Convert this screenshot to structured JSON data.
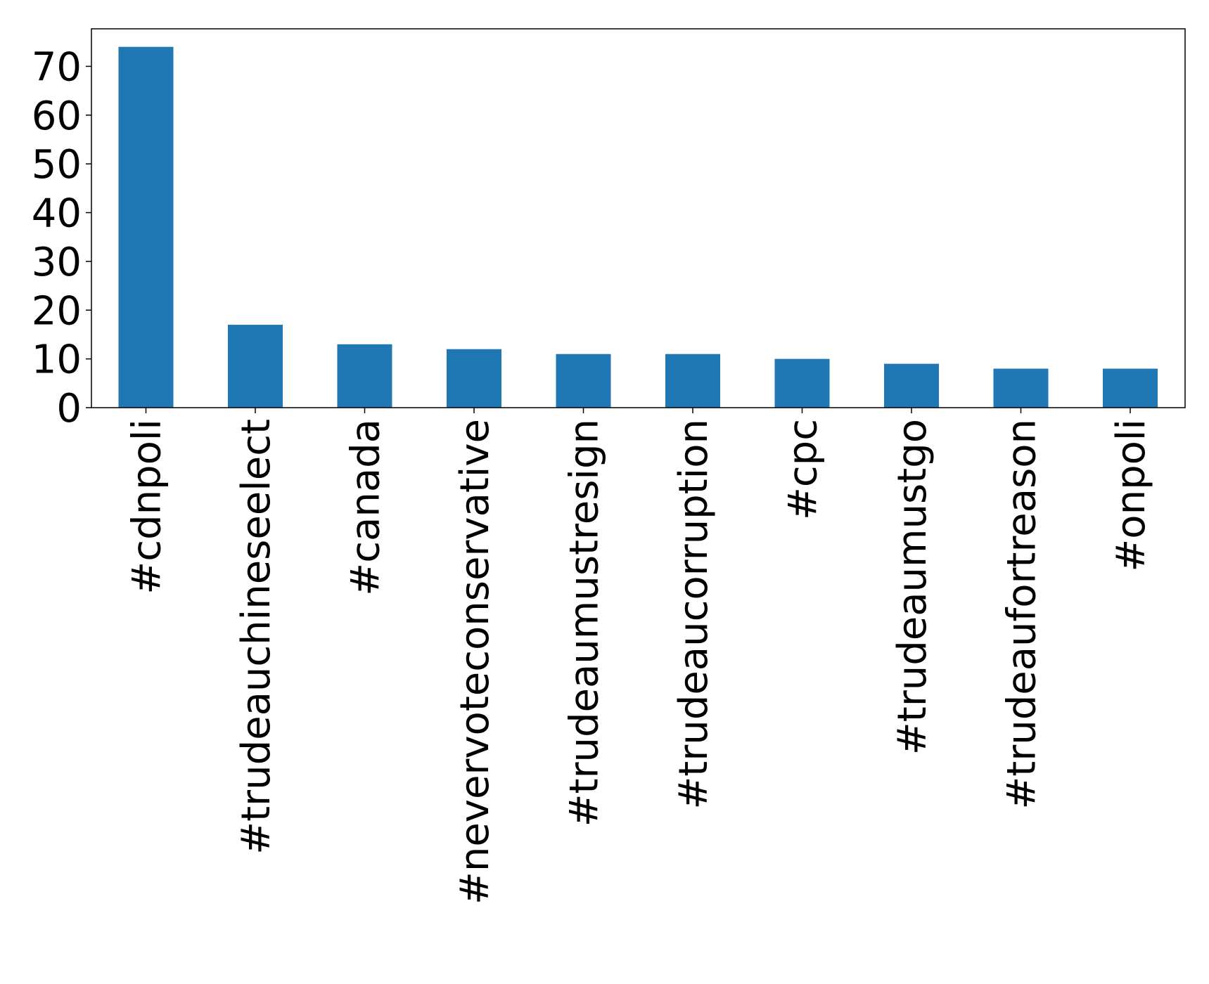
{
  "chart_data": {
    "type": "bar",
    "title": "",
    "xlabel": "",
    "ylabel": "",
    "categories": [
      "#cdnpoli",
      "#trudeauchineseelect",
      "#canada",
      "#nevervoteconservative",
      "#trudeaumustresign",
      "#trudeaucorruption",
      "#cpc",
      "#trudeaumustgo",
      "#trudeaufortreason",
      "#onpoli"
    ],
    "values": [
      74,
      17,
      13,
      12,
      11,
      11,
      10,
      9,
      8,
      8
    ],
    "ylim": [
      0,
      77.7
    ],
    "yticks": [
      0,
      10,
      20,
      30,
      40,
      50,
      60,
      70
    ],
    "ytick_labels": [
      "0",
      "10",
      "20",
      "30",
      "40",
      "50",
      "60",
      "70"
    ],
    "grid": false,
    "legend": "none",
    "bar_color": "#1f77b4"
  }
}
